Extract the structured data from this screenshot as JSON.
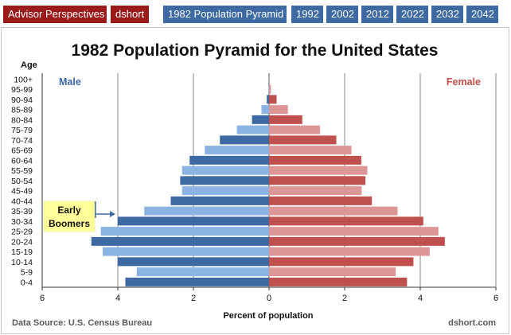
{
  "tabs": [
    {
      "label": "Advisor Perspectives",
      "color": "red"
    },
    {
      "label": "dshort",
      "color": "red"
    },
    {
      "label": "1982 Population Pyramid",
      "color": "blue"
    },
    {
      "label": "1992",
      "color": "blue"
    },
    {
      "label": "2002",
      "color": "blue"
    },
    {
      "label": "2012",
      "color": "blue"
    },
    {
      "label": "2022",
      "color": "blue"
    },
    {
      "label": "2032",
      "color": "blue"
    },
    {
      "label": "2042",
      "color": "blue"
    }
  ],
  "colors": {
    "male_dark": "#3d6aa3",
    "male_light": "#8cb4e2",
    "female_dark": "#c0504d",
    "female_light": "#dd9696",
    "tab_red": "#9b1b1b",
    "tab_blue": "#3d6aa3",
    "annotation_fill": "#ffff99"
  },
  "chart_data": {
    "type": "bar",
    "orientation": "horizontal-pyramid",
    "title": "1982 Population Pyramid for the United States",
    "ylabel": "Age",
    "xlabel": "Percent of population",
    "xlim": [
      -6,
      6
    ],
    "xticks": [
      "6",
      "4",
      "2",
      "0",
      "2",
      "4",
      "6"
    ],
    "grid": true,
    "categories": [
      "100+",
      "95-99",
      "90-94",
      "85-89",
      "80-84",
      "75-79",
      "70-74",
      "65-69",
      "60-64",
      "55-59",
      "50-54",
      "45-49",
      "40-44",
      "35-39",
      "30-34",
      "25-29",
      "20-24",
      "15-19",
      "10-14",
      "5-9",
      "0-4"
    ],
    "series": [
      {
        "name": "Male",
        "values": [
          0.0,
          0.02,
          0.06,
          0.2,
          0.45,
          0.85,
          1.3,
          1.7,
          2.1,
          2.3,
          2.35,
          2.3,
          2.6,
          3.3,
          4.0,
          4.45,
          4.7,
          4.4,
          4.0,
          3.5,
          3.8
        ]
      },
      {
        "name": "Female",
        "values": [
          0.0,
          0.05,
          0.2,
          0.5,
          0.88,
          1.35,
          1.78,
          2.18,
          2.44,
          2.6,
          2.55,
          2.45,
          2.72,
          3.4,
          4.08,
          4.48,
          4.65,
          4.25,
          3.82,
          3.35,
          3.65
        ]
      }
    ],
    "annotation": {
      "line1": "Early",
      "line2": "Boomers"
    },
    "source": "Data Source: U.S. Census Bureau",
    "credit": "dshort.com"
  }
}
